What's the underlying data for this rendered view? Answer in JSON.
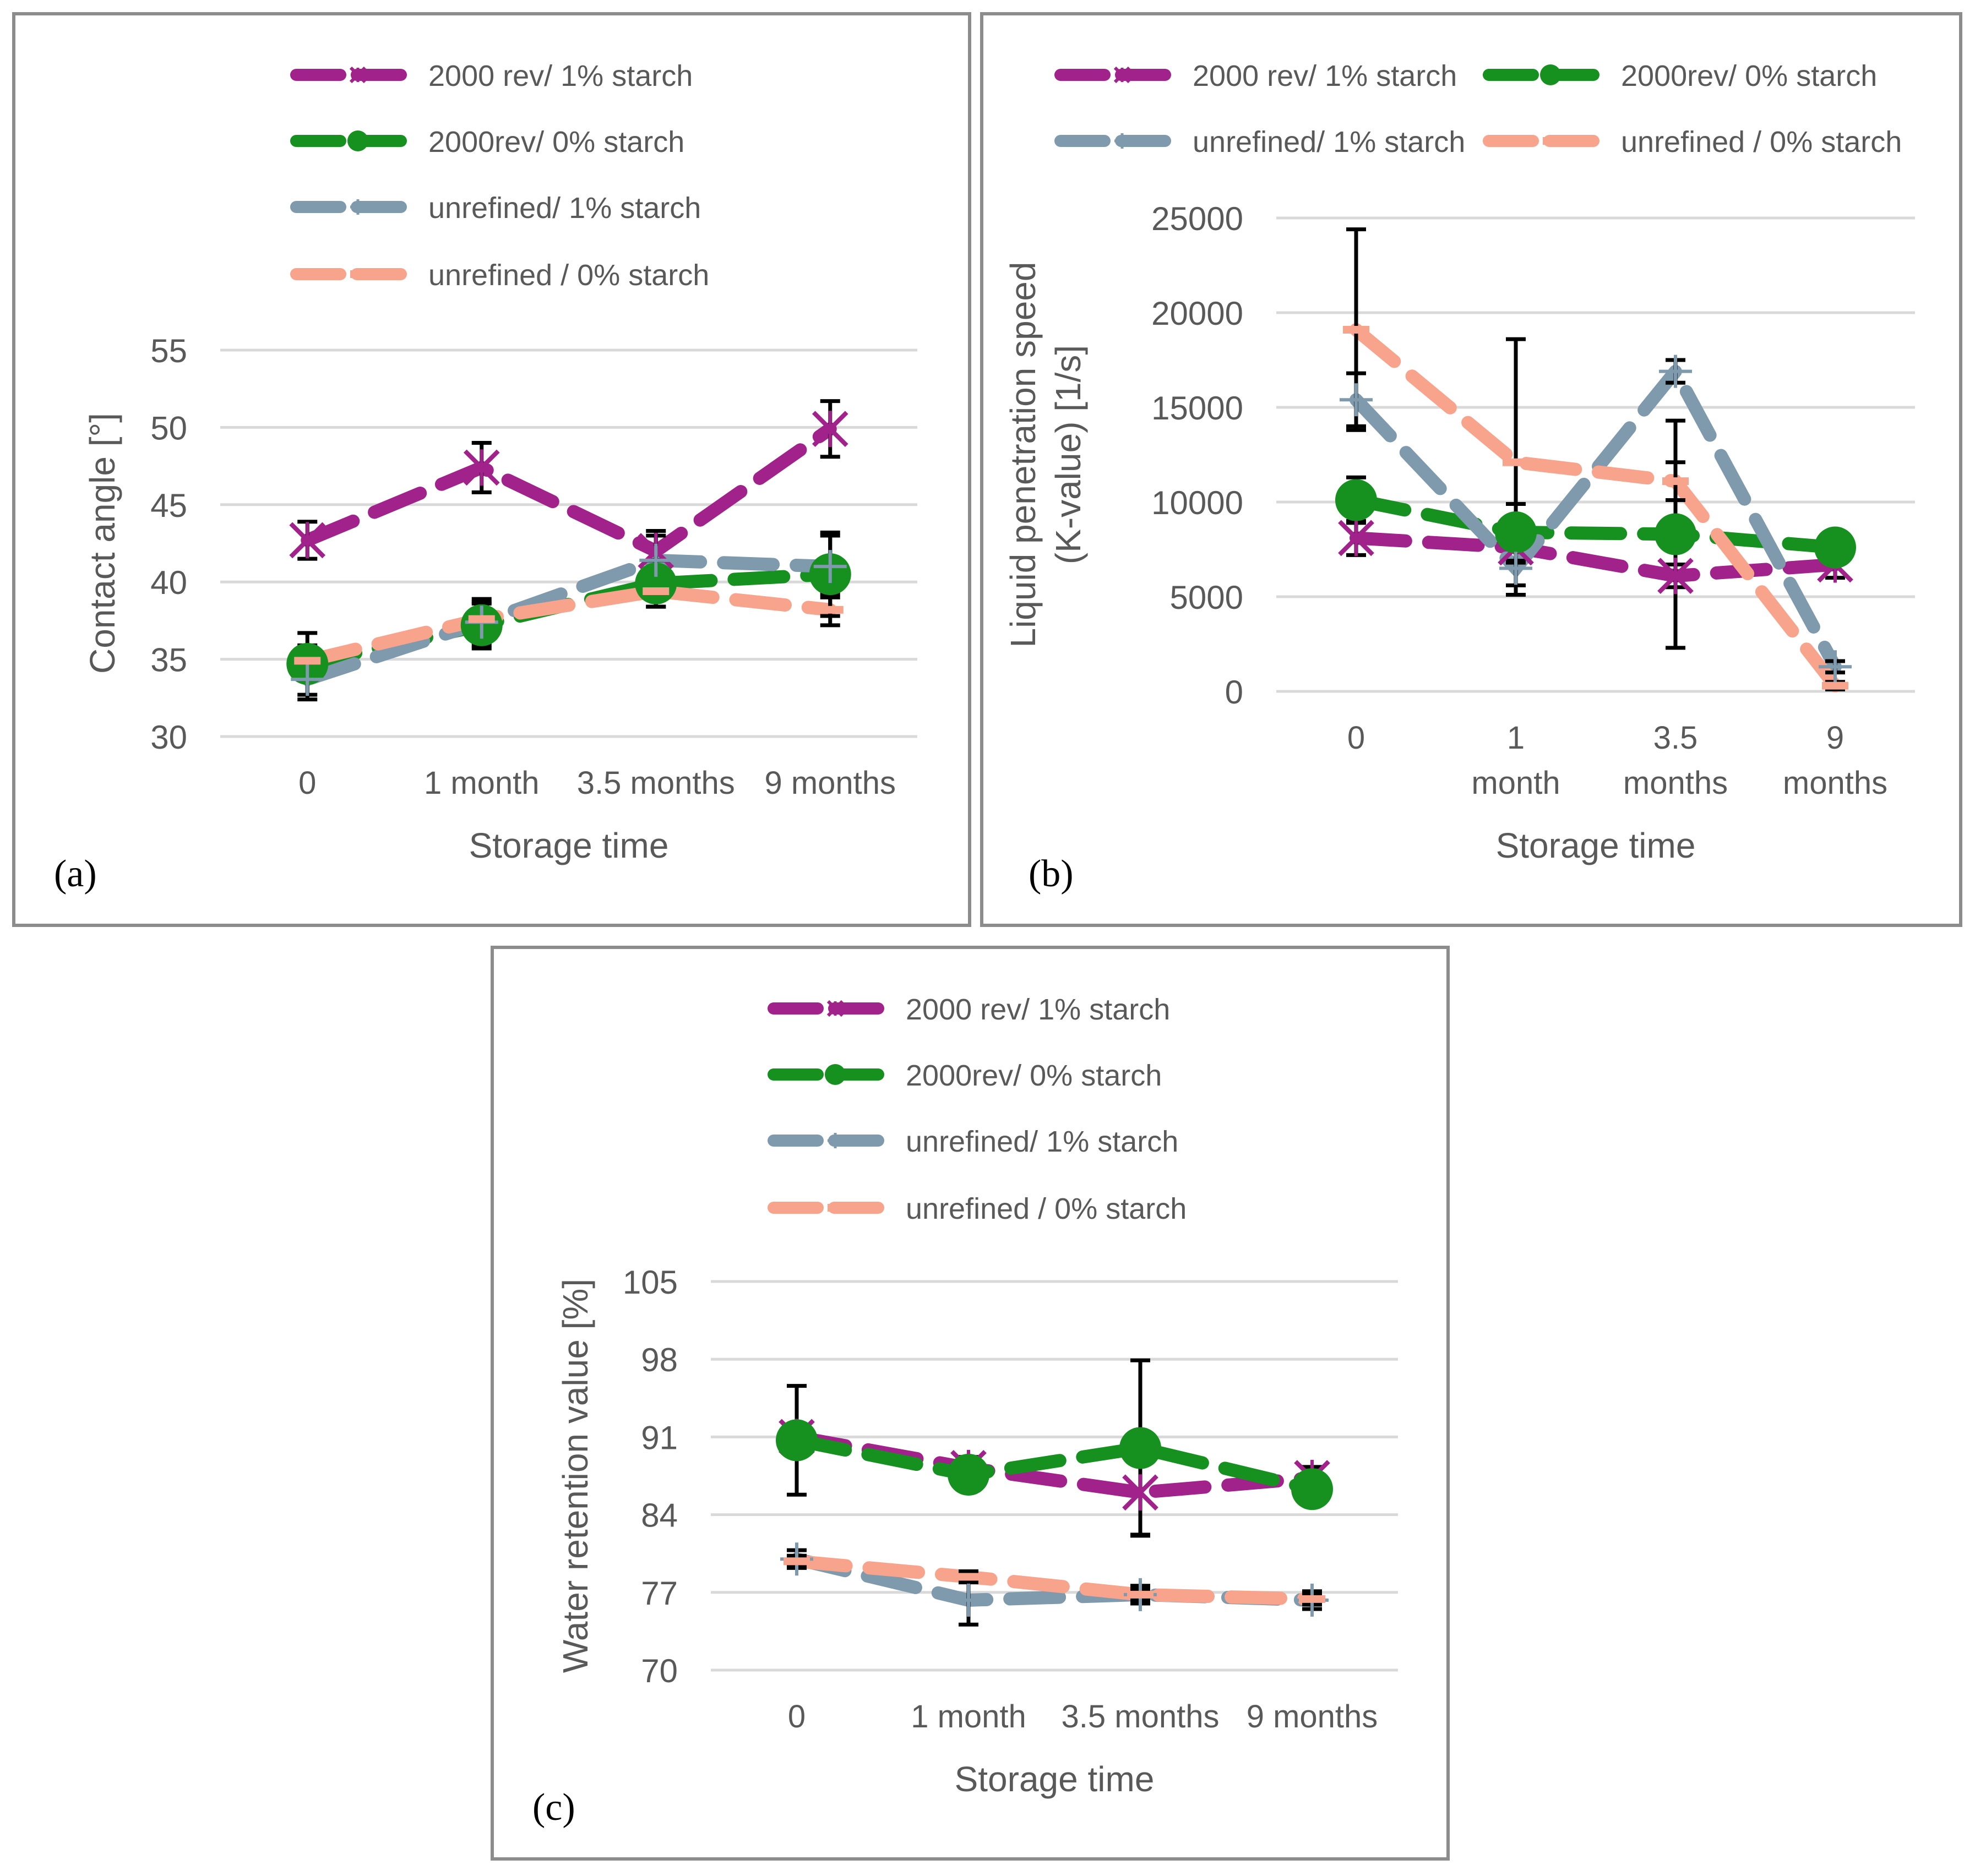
{
  "colors": {
    "rev_starch": "#a0228a",
    "rev_nostarch": "#16901f",
    "unref_starch": "#7f9aac",
    "unref_nostarch": "#f8a48c",
    "grid": "#d9d9d9",
    "text": "#595959",
    "error": "#000000"
  },
  "chart_data": [
    {
      "type": "line",
      "label": "(a)",
      "title": "",
      "xlabel": "Storage time",
      "ylabel": "Contact angle [°]",
      "categories": [
        "0",
        "1 month",
        "3.5 months",
        "9 months"
      ],
      "ylim": [
        30,
        55
      ],
      "yticks": [
        30,
        35,
        40,
        45,
        50,
        55
      ],
      "ytick_labels": [
        "30",
        "35",
        "40",
        "45",
        "50",
        "55"
      ],
      "legend": "top",
      "series": [
        {
          "name": "2000 rev/ 1% starch",
          "marker": "star",
          "values": [
            42.7,
            47.4,
            42.0,
            49.9
          ],
          "errors": [
            1.2,
            1.6,
            1.3,
            1.8
          ]
        },
        {
          "name": "2000rev/ 0% starch",
          "marker": "circle",
          "values": [
            34.7,
            37.2,
            39.9,
            40.5
          ],
          "errors": [
            2.0,
            1.5,
            1.5,
            2.7
          ]
        },
        {
          "name": "unrefined/ 1% starch",
          "marker": "plus",
          "values": [
            33.7,
            37.4,
            41.4,
            41.0
          ],
          "errors": [
            1.3,
            1.5,
            1.6,
            2.0
          ]
        },
        {
          "name": "unrefined / 0% starch",
          "marker": "dash",
          "values": [
            34.9,
            37.6,
            39.4,
            38.2
          ],
          "errors": [
            1.0,
            1.0,
            1.0,
            1.0
          ]
        }
      ]
    },
    {
      "type": "line",
      "label": "(b)",
      "title": "",
      "xlabel": "Storage time",
      "ylabel": "Liquid penetration speed (K-value) [1/s]",
      "categories": [
        "0",
        "1 month",
        "3.5 months",
        "9 months"
      ],
      "ylim": [
        0,
        25000
      ],
      "yticks": [
        0,
        5000,
        10000,
        15000,
        20000,
        25000
      ],
      "ytick_labels": [
        "0",
        "5000",
        "10000",
        "15000",
        "20000",
        "25000"
      ],
      "legend": "top",
      "series": [
        {
          "name": "2000 rev/ 1% starch",
          "marker": "star",
          "values": [
            8100,
            7600,
            6100,
            6700
          ],
          "errors": [
            900,
            800,
            600,
            700
          ]
        },
        {
          "name": "2000rev/ 0% starch",
          "marker": "circle",
          "values": [
            10100,
            8400,
            8300,
            7600
          ],
          "errors": [
            1200,
            1500,
            6000,
            700
          ]
        },
        {
          "name": "unrefined/ 1% starch",
          "marker": "plus",
          "values": [
            15400,
            6500,
            16900,
            1300
          ],
          "errors": [
            1400,
            1400,
            600,
            300
          ]
        },
        {
          "name": "unrefined / 0% starch",
          "marker": "dash",
          "values": [
            19100,
            12100,
            11100,
            300
          ],
          "errors": [
            5300,
            6500,
            1000,
            200
          ]
        }
      ]
    },
    {
      "type": "line",
      "label": "(c)",
      "title": "",
      "xlabel": "Storage time",
      "ylabel": "Water retention value [%]",
      "categories": [
        "0",
        "1 month",
        "3.5 months",
        "9 months"
      ],
      "ylim": [
        70,
        105
      ],
      "yticks": [
        70,
        77,
        84,
        91,
        98,
        105
      ],
      "ytick_labels": [
        "70",
        "77",
        "84",
        "91",
        "98",
        "105"
      ],
      "legend": "top",
      "series": [
        {
          "name": "2000 rev/ 1% starch",
          "marker": "star",
          "values": [
            91.0,
            88.2,
            86.0,
            87.3
          ],
          "errors": [
            1.0,
            1.0,
            3.8,
            1.0
          ]
        },
        {
          "name": "2000rev/ 0% starch",
          "marker": "circle",
          "values": [
            90.7,
            87.6,
            90.0,
            86.3
          ],
          "errors": [
            4.9,
            0.8,
            7.9,
            0.8
          ]
        },
        {
          "name": "unrefined/ 1% starch",
          "marker": "plus",
          "values": [
            80.0,
            76.3,
            76.8,
            76.3
          ],
          "errors": [
            0.8,
            2.2,
            0.8,
            0.8
          ]
        },
        {
          "name": "unrefined / 0% starch",
          "marker": "dash",
          "values": [
            79.8,
            78.4,
            76.8,
            76.4
          ],
          "errors": [
            0.5,
            0.5,
            0.5,
            0.5
          ]
        }
      ]
    }
  ]
}
